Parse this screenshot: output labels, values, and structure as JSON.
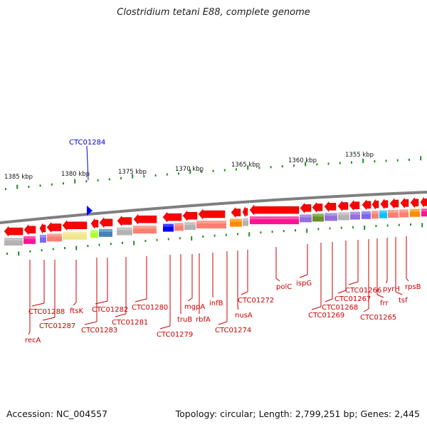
{
  "title": "Clostridium tetani E88, complete genome",
  "footer": {
    "accession": "Accession: NC_004557",
    "topology": "Topology: circular; Length: 2,799,251 bp; Genes: 2,445"
  },
  "colors": {
    "forward_strand": "#ff0000",
    "backbone": "#808080",
    "tick": "#228b22",
    "gene_label": "#cc0000",
    "highlight_label": "#0000cc",
    "marker": "#0000ff"
  },
  "scale_labels": [
    {
      "label": "1385 kbp",
      "kbp": 1385
    },
    {
      "label": "1380 kbp",
      "kbp": 1380
    },
    {
      "label": "1375 kbp",
      "kbp": 1375
    },
    {
      "label": "1370 kbp",
      "kbp": 1370
    },
    {
      "label": "1365 kbp",
      "kbp": 1365
    },
    {
      "label": "1360 kbp",
      "kbp": 1360
    },
    {
      "label": "1355 kbp",
      "kbp": 1355
    }
  ],
  "highlight": {
    "label": "CTC01284"
  },
  "gene_labels": [
    {
      "label": "CTC01288"
    },
    {
      "label": "recA"
    },
    {
      "label": "CTC01287"
    },
    {
      "label": "ftsK"
    },
    {
      "label": "CTC01283"
    },
    {
      "label": "CTC01282"
    },
    {
      "label": "CTC01281"
    },
    {
      "label": "CTC01280"
    },
    {
      "label": "CTC01279"
    },
    {
      "label": "truB"
    },
    {
      "label": "mgpA"
    },
    {
      "label": "rbfA"
    },
    {
      "label": "infB"
    },
    {
      "label": "CTC01274"
    },
    {
      "label": "nusA"
    },
    {
      "label": "CTC01272"
    },
    {
      "label": "polC"
    },
    {
      "label": "ispG"
    },
    {
      "label": "CTC01269"
    },
    {
      "label": "CTC01268"
    },
    {
      "label": "CTC01267"
    },
    {
      "label": "CTC01266"
    },
    {
      "label": "CTC01265"
    },
    {
      "label": "frr"
    },
    {
      "label": "pyrH"
    },
    {
      "label": "tsf"
    },
    {
      "label": "rpsB"
    }
  ],
  "cog_colors": [
    "#b3b3b3",
    "#ff1493",
    "#7b68ee",
    "#fa8072",
    "#f0e68c",
    "#adff2f",
    "#4682b4",
    "#0000ff",
    "#ff8c00",
    "#6b8e23",
    "#9370db",
    "#00bfff"
  ]
}
